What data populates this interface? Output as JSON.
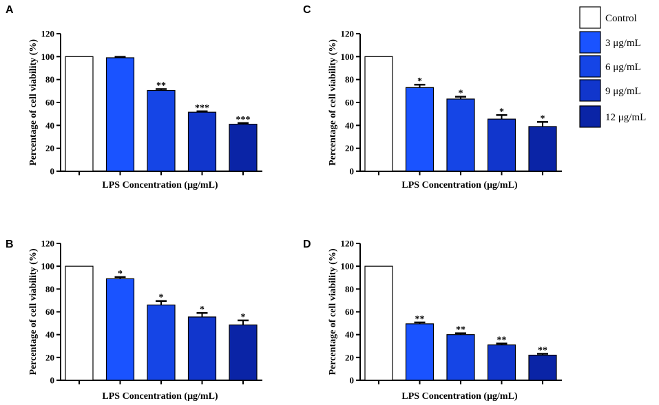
{
  "legend": [
    {
      "label": "Control",
      "color": "#ffffff"
    },
    {
      "label": "3 μg/mL",
      "color": "#1a53ff"
    },
    {
      "label": "6 μg/mL",
      "color": "#1545e6"
    },
    {
      "label": "9 μg/mL",
      "color": "#1136cc"
    },
    {
      "label": "12 μg/mL",
      "color": "#0a24a6"
    }
  ],
  "chart_data": [
    {
      "panel": "A",
      "type": "bar",
      "categories": [
        "Control",
        "3 μg/mL",
        "6 μg/mL",
        "9 μg/mL",
        "12 μg/mL"
      ],
      "values": [
        100,
        99,
        70.5,
        51.5,
        41
      ],
      "errors": [
        0,
        0.8,
        1.2,
        0.8,
        1.0
      ],
      "significance": [
        "",
        "",
        "**",
        "***",
        "***"
      ],
      "xlabel": "LPS Concentration (μg/mL)",
      "ylabel": "Percentage of cell viability (%)",
      "ylim": [
        0,
        120
      ],
      "yticks": [
        0,
        20,
        40,
        60,
        80,
        100,
        120
      ]
    },
    {
      "panel": "B",
      "type": "bar",
      "categories": [
        "Control",
        "3 μg/mL",
        "6 μg/mL",
        "9 μg/mL",
        "12 μg/mL"
      ],
      "values": [
        100,
        89,
        66,
        55.5,
        48.5
      ],
      "errors": [
        0,
        1.5,
        3.5,
        3.5,
        4.0
      ],
      "significance": [
        "",
        "*",
        "*",
        "*",
        "*"
      ],
      "xlabel": "LPS Concentration (μg/mL)",
      "ylabel": "Percentage of cell viability (%)",
      "ylim": [
        0,
        120
      ],
      "yticks": [
        0,
        20,
        40,
        60,
        80,
        100,
        120
      ]
    },
    {
      "panel": "C",
      "type": "bar",
      "categories": [
        "Control",
        "3 μg/mL",
        "6 μg/mL",
        "9 μg/mL",
        "12 μg/mL"
      ],
      "values": [
        100,
        73,
        63,
        45.5,
        39
      ],
      "errors": [
        0,
        2.5,
        2.0,
        3.5,
        4.0
      ],
      "significance": [
        "",
        "*",
        "*",
        "*",
        "*"
      ],
      "xlabel": "LPS Concentration (μg/mL)",
      "ylabel": "Percentage of cell viability (%)",
      "ylim": [
        0,
        120
      ],
      "yticks": [
        0,
        20,
        40,
        60,
        80,
        100,
        120
      ]
    },
    {
      "panel": "D",
      "type": "bar",
      "categories": [
        "Control",
        "3 μg/mL",
        "6 μg/mL",
        "9 μg/mL",
        "12 μg/mL"
      ],
      "values": [
        100,
        49.5,
        40,
        31,
        22
      ],
      "errors": [
        0,
        1.2,
        1.2,
        1.2,
        1.2
      ],
      "significance": [
        "",
        "**",
        "**",
        "**",
        "**"
      ],
      "xlabel": "LPS Concentration (μg/mL)",
      "ylabel": "Percentage of cell viability (%)",
      "ylim": [
        0,
        120
      ],
      "yticks": [
        0,
        20,
        40,
        60,
        80,
        100,
        120
      ]
    }
  ]
}
